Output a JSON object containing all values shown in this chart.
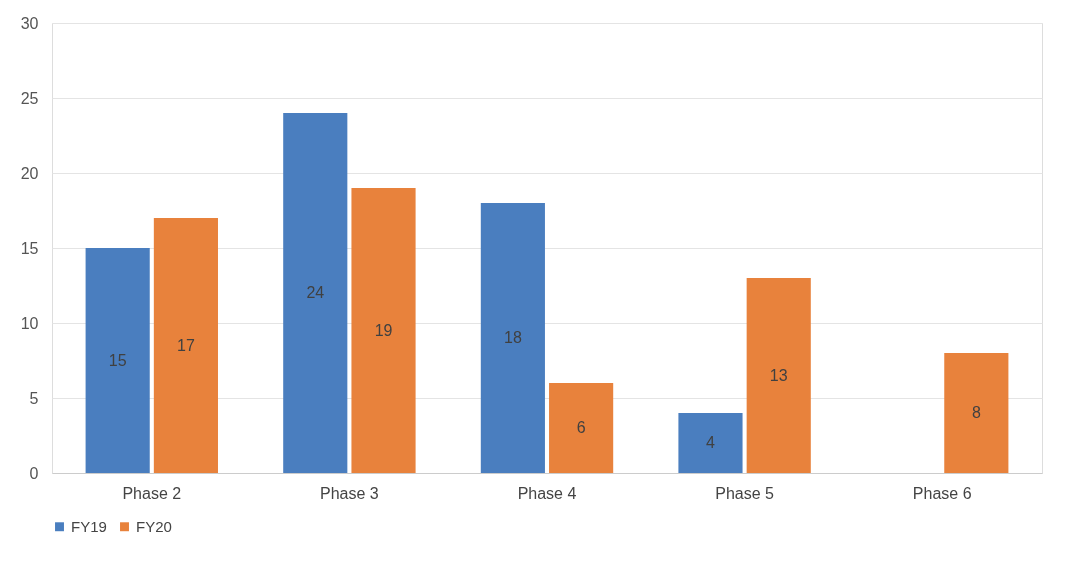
{
  "chart_data": {
    "type": "bar",
    "categories": [
      "Phase 2",
      "Phase 3",
      "Phase 4",
      "Phase 5",
      "Phase 6"
    ],
    "series": [
      {
        "name": "FY19",
        "color": "#4a7ebf",
        "values": [
          15,
          24,
          18,
          4,
          null
        ]
      },
      {
        "name": "FY20",
        "color": "#e8823c",
        "values": [
          17,
          19,
          6,
          13,
          8
        ]
      }
    ],
    "ylim": [
      0,
      30
    ],
    "yticks": [
      0,
      5,
      10,
      15,
      20,
      25,
      30
    ],
    "grid": "y",
    "legend": "bottom",
    "data_labels": true
  }
}
